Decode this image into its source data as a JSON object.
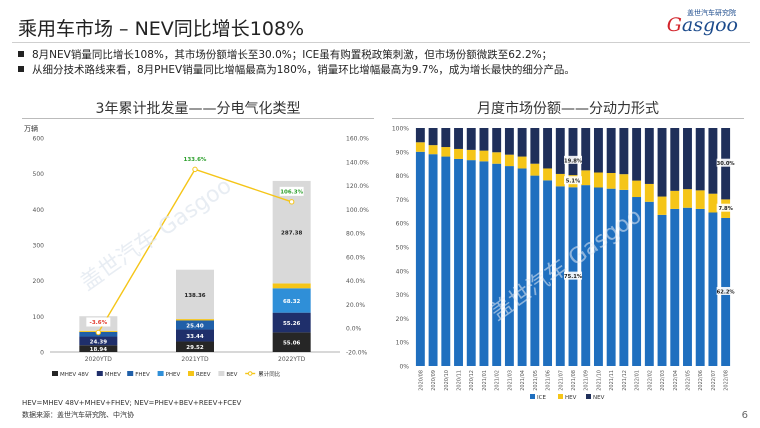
{
  "header": {
    "title": "乘用车市场 – NEV同比增长108%",
    "logo_text": "asgoo",
    "logo_initial": "G",
    "logo_subtext": "盖世汽车研究院"
  },
  "bullets": [
    "8月NEV销量同比增长108%，其市场份额增长至30.0%；ICE虽有购置税政策刺激，但市场份额微跌至62.2%；",
    "从细分技术路线来看，8月PHEV销量同比增幅最高为180%，销量环比增幅最高为9.7%，成为增长最快的细分产品。"
  ],
  "footnote": "HEV=MHEV 48V+MHEV+FHEV; NEV=PHEV+BEV+REEV+FCEV",
  "source": "数据来源：盖世汽车研究院、中汽协",
  "page_number": "6",
  "watermark": "盖世汽车 Gasgoo",
  "chart_data": [
    {
      "type": "bar",
      "title": "3年累计批发量——分电气化类型",
      "ylabel": "万辆",
      "ylim": [
        0,
        600
      ],
      "y2lim": [
        -20,
        160
      ],
      "yticks": [
        "0",
        "100",
        "200",
        "300",
        "400",
        "500",
        "600"
      ],
      "y2ticks": [
        "-20.0%",
        "0.0%",
        "20.0%",
        "40.0%",
        "60.0%",
        "80.0%",
        "100.0%",
        "120.0%",
        "140.0%",
        "160.0%"
      ],
      "categories": [
        "2020YTD",
        "2021YTD",
        "2022YTD"
      ],
      "stacked": true,
      "series": [
        {
          "name": "MHEV 48V",
          "color": "#262626",
          "values": [
            18.94,
            29.52,
            55.06
          ],
          "labels": [
            "18.94",
            "29.52",
            "55.06"
          ]
        },
        {
          "name": "MHEV",
          "color": "#1f2f6b",
          "values": [
            24.39,
            33.44,
            55.26
          ],
          "labels": [
            "24.39",
            "33.44",
            "55.26"
          ]
        },
        {
          "name": "FHEV",
          "color": "#1f5fa8",
          "values": [
            13.03,
            25.4,
            0
          ],
          "labels": [
            "13.03",
            "25.40",
            ""
          ]
        },
        {
          "name": "PHEV",
          "color": "#2f8fd8",
          "values": [
            0,
            0,
            68.32
          ],
          "labels": [
            "",
            "",
            "68.32"
          ]
        },
        {
          "name": "REEV",
          "color": "#f5c518",
          "values": [
            3,
            4,
            13.7
          ],
          "labels": [
            "",
            "",
            "13.7"
          ]
        },
        {
          "name": "BEV",
          "color": "#d9d9d9",
          "values": [
            40.96,
            138.36,
            287.38
          ],
          "labels": [
            "40.96",
            "138.36",
            "287.38"
          ]
        }
      ],
      "line": {
        "name": "累计同比",
        "color": "#f5c518",
        "values": [
          -3.6,
          133.6,
          106.3
        ],
        "labels": [
          "-3.6%",
          "133.6%",
          "106.3%"
        ],
        "label_colors": [
          "#e23b2e",
          "#2ca02c",
          "#2ca02c"
        ]
      },
      "legend_position": "bottom"
    },
    {
      "type": "bar",
      "title": "月度市场份额——分动力形式",
      "stacked": true,
      "ylim": [
        0,
        100
      ],
      "yticks": [
        "0%",
        "10%",
        "20%",
        "30%",
        "40%",
        "50%",
        "60%",
        "70%",
        "80%",
        "90%",
        "100%"
      ],
      "categories": [
        "2020/08",
        "2020/09",
        "2020/10",
        "2020/11",
        "2020/12",
        "2021/01",
        "2021/02",
        "2021/03",
        "2021/04",
        "2021/05",
        "2021/06",
        "2021/07",
        "2021/08",
        "2021/09",
        "2021/10",
        "2021/11",
        "2021/12",
        "2022/01",
        "2022/02",
        "2022/03",
        "2022/04",
        "2022/05",
        "2022/06",
        "2022/07",
        "2022/08"
      ],
      "series": [
        {
          "name": "ICE",
          "color": "#1f6fbf",
          "values": [
            90.0,
            89.0,
            88.0,
            87.0,
            86.5,
            86.0,
            85.0,
            84.0,
            83.0,
            80.0,
            78.0,
            75.5,
            75.1,
            76.0,
            75.0,
            74.5,
            74.0,
            71.0,
            69.0,
            63.5,
            66.0,
            66.5,
            66.0,
            64.5,
            62.2
          ]
        },
        {
          "name": "HEV",
          "color": "#f5c518",
          "values": [
            4.0,
            3.8,
            4.0,
            4.2,
            4.3,
            4.5,
            4.8,
            4.8,
            5.0,
            5.0,
            5.0,
            5.2,
            5.1,
            6.2,
            6.3,
            6.6,
            6.6,
            6.9,
            7.5,
            7.7,
            7.6,
            7.8,
            7.8,
            7.9,
            7.8
          ]
        },
        {
          "name": "NEV",
          "color": "#1f2f5a",
          "values": [
            6.0,
            7.2,
            8.0,
            8.8,
            9.2,
            9.5,
            10.2,
            11.2,
            12.0,
            15.0,
            17.0,
            19.3,
            19.8,
            17.8,
            18.7,
            18.9,
            19.4,
            22.1,
            23.5,
            28.8,
            26.4,
            25.7,
            26.2,
            27.6,
            30.0
          ]
        }
      ],
      "annotations": [
        "19.8%",
        "5.1%",
        "75.1%",
        "30.0%",
        "7.8%",
        "62.2%"
      ],
      "legend_position": "bottom"
    }
  ]
}
